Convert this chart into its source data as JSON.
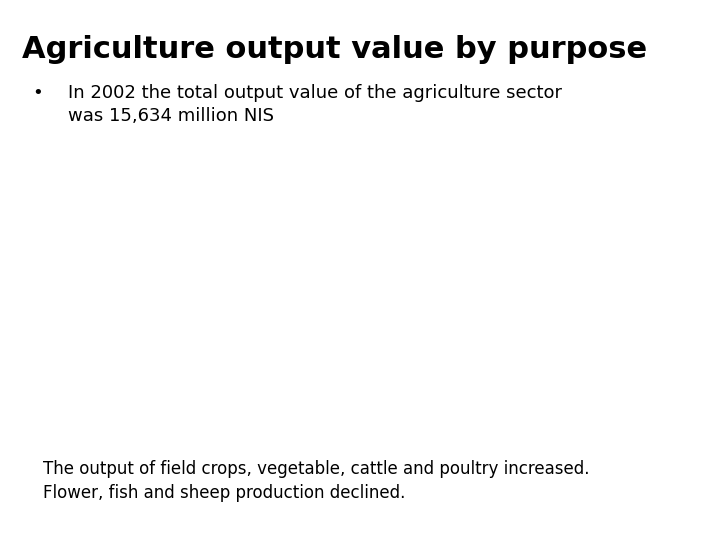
{
  "title": "Agriculture output value by purpose",
  "bullet_text": "In 2002 the total output value of the agriculture sector\nwas 15,634 million NIS",
  "footer_line1": "The output of field crops, vegetable, cattle and poultry increased.",
  "footer_line2": "Flower, fish and sheep production declined.",
  "background_color": "#ffffff",
  "title_fontsize": 22,
  "bullet_fontsize": 13,
  "footer_fontsize": 12,
  "title_color": "#000000",
  "bullet_color": "#000000",
  "footer_color": "#000000"
}
